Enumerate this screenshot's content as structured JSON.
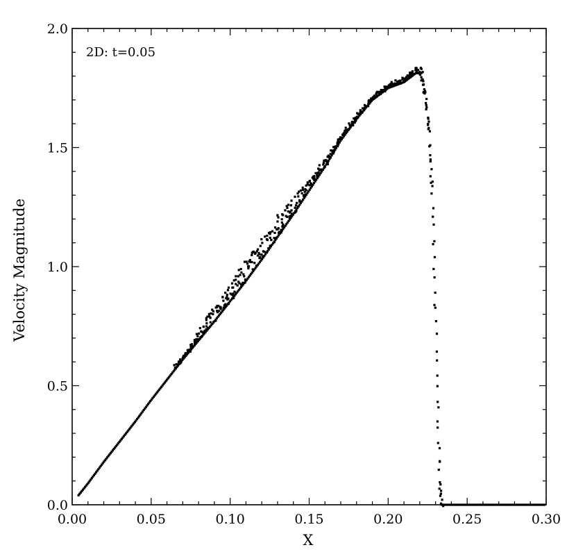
{
  "chart_data": {
    "type": "scatter",
    "title": "",
    "annotation": "2D: t=0.05",
    "xlabel": "X",
    "ylabel": "Velocity Magnitude",
    "xlim": [
      0.0,
      0.3
    ],
    "ylim": [
      0.0,
      2.0
    ],
    "x_ticks": [
      "0.00",
      "0.05",
      "0.10",
      "0.15",
      "0.20",
      "0.25",
      "0.30"
    ],
    "y_ticks": [
      "0.0",
      "0.5",
      "1.0",
      "1.5",
      "2.0"
    ],
    "grid": false,
    "marker_color": "#000000",
    "series": [
      {
        "main_curve": [
          [
            0.004,
            0.04
          ],
          [
            0.01,
            0.09
          ],
          [
            0.02,
            0.18
          ],
          [
            0.03,
            0.265
          ],
          [
            0.04,
            0.35
          ],
          [
            0.05,
            0.44
          ],
          [
            0.06,
            0.525
          ],
          [
            0.07,
            0.61
          ],
          [
            0.08,
            0.69
          ],
          [
            0.09,
            0.77
          ],
          [
            0.1,
            0.855
          ],
          [
            0.11,
            0.94
          ],
          [
            0.12,
            1.03
          ],
          [
            0.13,
            1.125
          ],
          [
            0.14,
            1.22
          ],
          [
            0.15,
            1.32
          ],
          [
            0.16,
            1.42
          ],
          [
            0.17,
            1.53
          ],
          [
            0.18,
            1.62
          ],
          [
            0.19,
            1.7
          ],
          [
            0.2,
            1.75
          ],
          [
            0.21,
            1.775
          ],
          [
            0.215,
            1.8
          ],
          [
            0.218,
            1.815
          ],
          [
            0.22,
            1.81
          ],
          [
            0.222,
            1.78
          ],
          [
            0.224,
            1.7
          ],
          [
            0.226,
            1.55
          ],
          [
            0.228,
            1.3
          ],
          [
            0.229,
            1.05
          ],
          [
            0.23,
            0.8
          ],
          [
            0.231,
            0.5
          ],
          [
            0.232,
            0.25
          ],
          [
            0.233,
            0.08
          ],
          [
            0.234,
            0.01
          ],
          [
            0.236,
            0.0
          ],
          [
            0.3,
            0.0
          ]
        ],
        "spread": [
          [
            0.07,
            0.015
          ],
          [
            0.09,
            0.06
          ],
          [
            0.11,
            0.09
          ],
          [
            0.13,
            0.09
          ],
          [
            0.15,
            0.05
          ],
          [
            0.17,
            0.02
          ],
          [
            0.19,
            0.015
          ],
          [
            0.21,
            0.02
          ],
          [
            0.218,
            0.03
          ]
        ],
        "tail_x_values": [
          0.2285,
          0.2295,
          0.2305,
          0.2315,
          0.2325
        ]
      }
    ]
  }
}
